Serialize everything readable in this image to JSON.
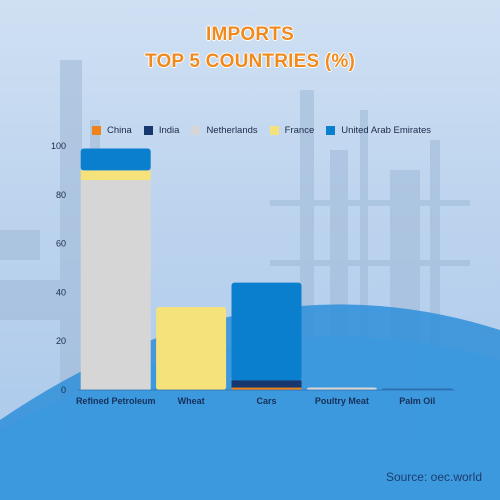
{
  "title_line1": "IMPORTS",
  "title_line2": "TOP 5 COUNTRIES (%)",
  "source": "Source: oec.world",
  "chart_data": {
    "type": "bar",
    "stacked": true,
    "categories": [
      "Refined Petroleum",
      "Wheat",
      "Cars",
      "Poultry Meat",
      "Palm Oil"
    ],
    "series": [
      {
        "name": "China",
        "color": "#f0821c",
        "values": [
          0,
          0,
          1,
          0,
          0
        ]
      },
      {
        "name": "India",
        "color": "#17386e",
        "values": [
          0,
          0,
          3,
          0,
          0
        ]
      },
      {
        "name": "Netherlands",
        "color": "#d6d6d6",
        "values": [
          86,
          0,
          0,
          1,
          0
        ]
      },
      {
        "name": "France",
        "color": "#f6e27a",
        "values": [
          4,
          34,
          0,
          0,
          0
        ]
      },
      {
        "name": "United Arab Emirates",
        "color": "#0a7fce",
        "values": [
          9,
          0,
          40,
          0,
          0
        ]
      }
    ],
    "y_ticks": [
      "0",
      "20",
      "40",
      "60",
      "80",
      "100"
    ],
    "ylim": [
      0,
      100
    ],
    "legend_position": "top"
  }
}
